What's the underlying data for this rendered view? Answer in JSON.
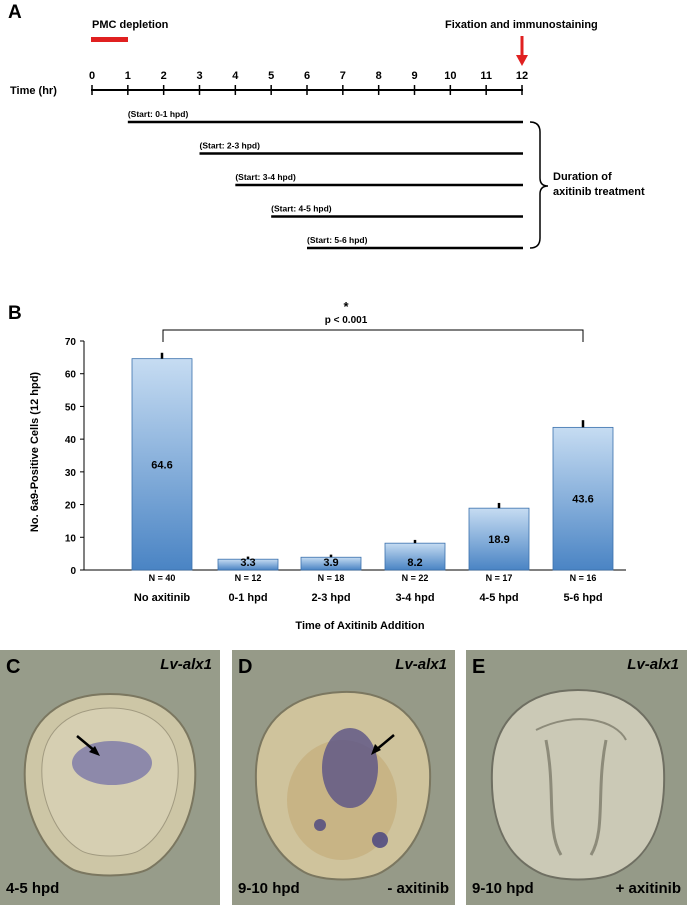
{
  "panel_a": {
    "letter": "A",
    "pmc_label": "PMC depletion",
    "fix_label": "Fixation and immunostaining",
    "axis_label": "Time (hr)",
    "ticks": [
      "0",
      "1",
      "2",
      "3",
      "4",
      "5",
      "6",
      "7",
      "8",
      "9",
      "10",
      "11",
      "12"
    ],
    "treatments": [
      {
        "label": "(Start: 0-1 hpd)",
        "start": 1
      },
      {
        "label": "(Start: 2-3 hpd)",
        "start": 3
      },
      {
        "label": "(Start: 3-4 hpd)",
        "start": 4
      },
      {
        "label": "(Start: 4-5 hpd)",
        "start": 5
      },
      {
        "label": "(Start: 5-6 hpd)",
        "start": 6
      }
    ],
    "bracket_label_1": "Duration of",
    "bracket_label_2": "axitinib treatment",
    "colors": {
      "pmc": "#e02020",
      "arrow": "#e02020"
    }
  },
  "panel_b": {
    "letter": "B",
    "significance_star": "*",
    "significance_text": "p < 0.001"
  },
  "chart_data": {
    "type": "bar",
    "categories": [
      "No axitinib",
      "0-1 hpd",
      "2-3 hpd",
      "3-4 hpd",
      "4-5 hpd",
      "5-6 hpd"
    ],
    "values": [
      64.6,
      3.3,
      3.9,
      8.2,
      18.9,
      43.6
    ],
    "value_labels": [
      "64.6",
      "3.3",
      "3.9",
      "8.2",
      "18.9",
      "43.6"
    ],
    "errors": [
      1.8,
      0.8,
      0.8,
      1.0,
      1.6,
      2.2
    ],
    "n_labels": [
      "N = 40",
      "N = 12",
      "N = 18",
      "N = 22",
      "N = 17",
      "N = 16"
    ],
    "xlabel": "Time of Axitinib Addition",
    "ylabel": "No. 6a9-Positive Cells (12 hpd)",
    "ylim": [
      0,
      70
    ],
    "yticks": [
      "0",
      "10",
      "20",
      "30",
      "40",
      "50",
      "60",
      "70"
    ],
    "grid": false,
    "colors": {
      "bar_top": "#c6dcf2",
      "bar_bottom": "#4a84c4"
    }
  },
  "panels_cde": [
    {
      "letter": "C",
      "gene": "Lv-alx1",
      "caption_left": "4-5 hpd",
      "caption_right": ""
    },
    {
      "letter": "D",
      "gene": "Lv-alx1",
      "caption_left": "9-10 hpd",
      "caption_right": "- axitinib"
    },
    {
      "letter": "E",
      "gene": "Lv-alx1",
      "caption_left": "9-10 hpd",
      "caption_right": "+ axitinib"
    }
  ]
}
